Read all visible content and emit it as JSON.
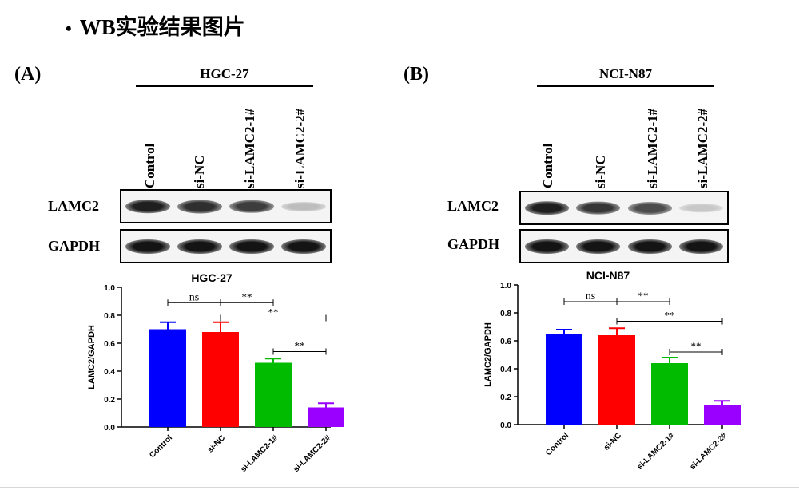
{
  "slide": {
    "bullet": "•",
    "title": "WB实验结果图片"
  },
  "panels": [
    {
      "label": "(A)",
      "cell_line": "HGC-27",
      "lanes": [
        "Control",
        "si-NC",
        "si-LAMC2-1#",
        "si-LAMC2-2#"
      ],
      "blots": [
        {
          "protein": "LAMC2",
          "band_intensity": [
            0.95,
            0.88,
            0.82,
            0.25
          ]
        },
        {
          "protein": "GAPDH",
          "band_intensity": [
            1.0,
            1.0,
            1.0,
            1.0
          ]
        }
      ]
    },
    {
      "label": "(B)",
      "cell_line": "NCI-N87",
      "lanes": [
        "Control",
        "si-NC",
        "si-LAMC2-1#",
        "si-LAMC2-2#"
      ],
      "blots": [
        {
          "protein": "LAMC2",
          "band_intensity": [
            0.95,
            0.85,
            0.75,
            0.2
          ]
        },
        {
          "protein": "GAPDH",
          "band_intensity": [
            1.0,
            1.0,
            1.0,
            1.0
          ]
        }
      ]
    }
  ],
  "chart_data": [
    {
      "type": "bar",
      "title": "HGC-27",
      "xlabel": "",
      "ylabel": "LAMC2/GAPDH",
      "categories": [
        "Control",
        "si-NC",
        "si-LAMC2-1#",
        "si-LAMC2-2#"
      ],
      "values": [
        0.7,
        0.68,
        0.46,
        0.14
      ],
      "errors": [
        0.05,
        0.07,
        0.03,
        0.03
      ],
      "colors": [
        "#0000ff",
        "#ff0000",
        "#00bb00",
        "#9900ff"
      ],
      "ylim": [
        0.0,
        1.0
      ],
      "yticks": [
        "0.0",
        "0.2",
        "0.4",
        "0.6",
        "0.8",
        "1.0"
      ],
      "grid": false,
      "significance": [
        {
          "from": 0,
          "to": 1,
          "label": "ns",
          "y": 0.89
        },
        {
          "from": 1,
          "to": 2,
          "label": "**",
          "y": 0.89
        },
        {
          "from": 1,
          "to": 3,
          "label": "**",
          "y": 0.78
        },
        {
          "from": 2,
          "to": 3,
          "label": "**",
          "y": 0.54
        }
      ]
    },
    {
      "type": "bar",
      "title": "NCI-N87",
      "xlabel": "",
      "ylabel": "LAMC2/GAPDH",
      "categories": [
        "Control",
        "si-NC",
        "si-LAMC2-1#",
        "si-LAMC2-2#"
      ],
      "values": [
        0.65,
        0.64,
        0.44,
        0.14
      ],
      "errors": [
        0.03,
        0.05,
        0.04,
        0.03
      ],
      "colors": [
        "#0000ff",
        "#ff0000",
        "#00bb00",
        "#9900ff"
      ],
      "ylim": [
        0.0,
        1.0
      ],
      "yticks": [
        "0.0",
        "0.2",
        "0.4",
        "0.6",
        "0.8",
        "1.0"
      ],
      "grid": false,
      "significance": [
        {
          "from": 0,
          "to": 1,
          "label": "ns",
          "y": 0.88
        },
        {
          "from": 1,
          "to": 2,
          "label": "**",
          "y": 0.88
        },
        {
          "from": 1,
          "to": 3,
          "label": "**",
          "y": 0.74
        },
        {
          "from": 2,
          "to": 3,
          "label": "**",
          "y": 0.52
        }
      ]
    }
  ]
}
